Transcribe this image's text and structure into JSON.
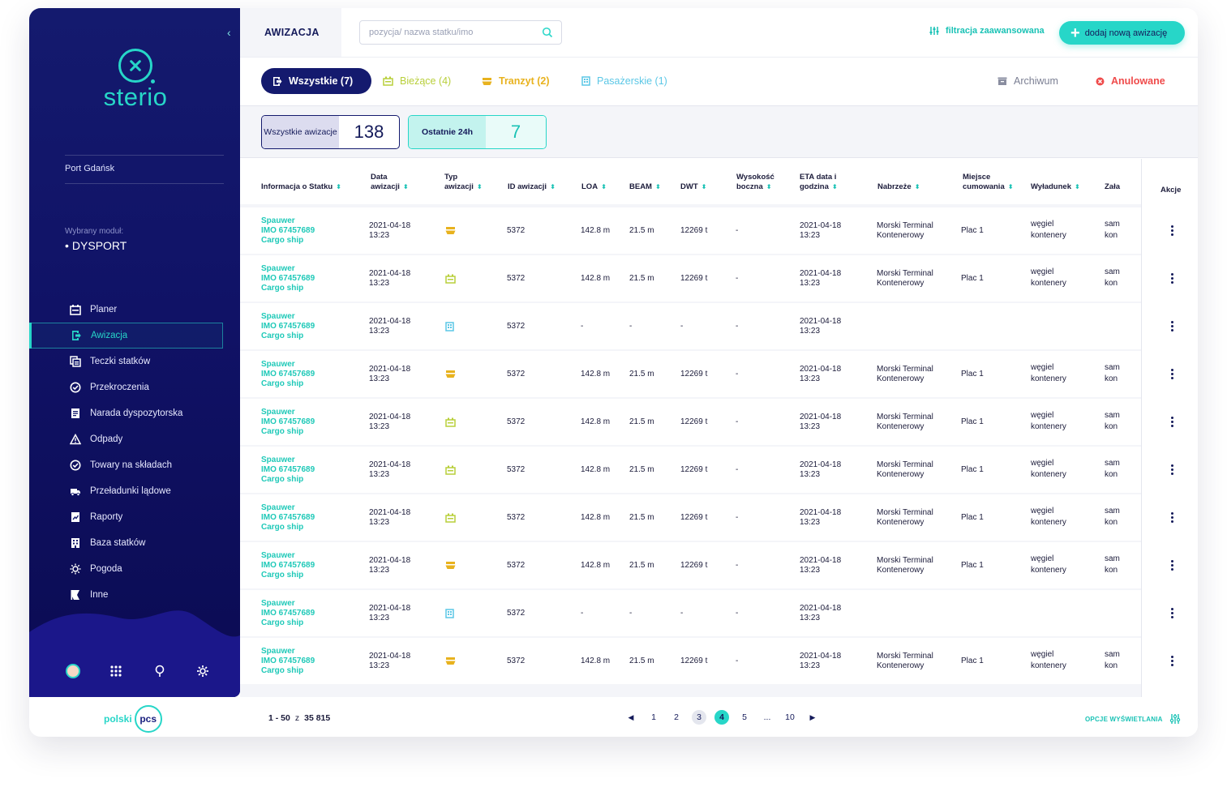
{
  "brand": {
    "name": "sterio",
    "footer_logo_left": "polski",
    "footer_logo_right": "pcs"
  },
  "sidebar": {
    "port": "Port Gdańsk",
    "module_caption": "Wybrany moduł:",
    "module_name": "DYSPORT",
    "items": [
      {
        "label": "Planer",
        "icon": "calendar-icon"
      },
      {
        "label": "Awizacja",
        "icon": "awizacja-icon",
        "active": true
      },
      {
        "label": "Teczki statków",
        "icon": "folders-icon"
      },
      {
        "label": "Przekroczenia",
        "icon": "check-circle-icon"
      },
      {
        "label": "Narada dyspozytorska",
        "icon": "document-icon"
      },
      {
        "label": "Odpady",
        "icon": "warning-icon"
      },
      {
        "label": "Towary na składach",
        "icon": "check-circle-icon"
      },
      {
        "label": "Przeładunki lądowe",
        "icon": "truck-icon"
      },
      {
        "label": "Raporty",
        "icon": "report-icon"
      },
      {
        "label": "Baza statków",
        "icon": "building-icon"
      },
      {
        "label": "Pogoda",
        "icon": "sun-icon"
      },
      {
        "label": "Inne",
        "icon": "flag-icon"
      }
    ]
  },
  "topbar": {
    "title": "AWIZACJA",
    "search_placeholder": "pozycja/ nazwa statku/imo",
    "filter_label": "filtracja zaawansowana",
    "add_label": "dodaj nową awizację"
  },
  "tabs": {
    "all": "Wszystkie (7)",
    "current": "Bieżące (4)",
    "tranzyt": "Tranzyt (2)",
    "passenger": "Pasażerskie (1)",
    "archive": "Archiwum",
    "cancelled": "Anulowane"
  },
  "stats": {
    "all_label": "Wszystkie awizacje",
    "all_value": "138",
    "last24_label": "Ostatnie 24h",
    "last24_value": "7"
  },
  "table": {
    "headers": {
      "ship": "Informacja o Statku",
      "date": "Data awizacji",
      "type": "Typ awizacji",
      "id": "ID awizacji",
      "loa": "LOA",
      "beam": "BEAM",
      "dwt": "DWT",
      "height": "Wysokość boczna",
      "eta": "ETA data i godzina",
      "quay": "Nabrzeże",
      "berth": "Miejsce cumowania",
      "unload": "Wyładunek",
      "load": "Zała",
      "actions": "Akcje"
    },
    "rows": [
      {
        "ship_name": "Spauwer",
        "ship_imo": "IMO 67457689",
        "ship_type": "Cargo ship",
        "date1": "2021-04-18",
        "date2": "13:23",
        "type_icon": "tranzyt",
        "id": "5372",
        "loa": "142.8 m",
        "beam": "21.5 m",
        "dwt": "12269 t",
        "height": "-",
        "eta1": "2021-04-18",
        "eta2": "13:23",
        "quay1": "Morski Terminal",
        "quay2": "Kontenerowy",
        "berth": "Plac 1",
        "unload1": "węgiel",
        "unload2": "kontenery",
        "load1": "sam",
        "load2": "kon"
      },
      {
        "ship_name": "Spauwer",
        "ship_imo": "IMO 67457689",
        "ship_type": "Cargo ship",
        "date1": "2021-04-18",
        "date2": "13:23",
        "type_icon": "current",
        "id": "5372",
        "loa": "142.8 m",
        "beam": "21.5 m",
        "dwt": "12269 t",
        "height": "-",
        "eta1": "2021-04-18",
        "eta2": "13:23",
        "quay1": "Morski Terminal",
        "quay2": "Kontenerowy",
        "berth": "Plac 1",
        "unload1": "węgiel",
        "unload2": "kontenery",
        "load1": "sam",
        "load2": "kon"
      },
      {
        "ship_name": "Spauwer",
        "ship_imo": "IMO 67457689",
        "ship_type": "Cargo ship",
        "date1": "2021-04-18",
        "date2": "13:23",
        "type_icon": "passenger",
        "id": "5372",
        "loa": "-",
        "beam": "-",
        "dwt": "-",
        "height": "-",
        "eta1": "2021-04-18",
        "eta2": "13:23",
        "quay1": "",
        "quay2": "",
        "berth": "",
        "unload1": "",
        "unload2": "",
        "load1": "",
        "load2": ""
      },
      {
        "ship_name": "Spauwer",
        "ship_imo": "IMO 67457689",
        "ship_type": "Cargo ship",
        "date1": "2021-04-18",
        "date2": "13:23",
        "type_icon": "tranzyt",
        "id": "5372",
        "loa": "142.8 m",
        "beam": "21.5 m",
        "dwt": "12269 t",
        "height": "-",
        "eta1": "2021-04-18",
        "eta2": "13:23",
        "quay1": "Morski Terminal",
        "quay2": "Kontenerowy",
        "berth": "Plac 1",
        "unload1": "węgiel",
        "unload2": "kontenery",
        "load1": "sam",
        "load2": "kon"
      },
      {
        "ship_name": "Spauwer",
        "ship_imo": "IMO 67457689",
        "ship_type": "Cargo ship",
        "date1": "2021-04-18",
        "date2": "13:23",
        "type_icon": "current",
        "id": "5372",
        "loa": "142.8 m",
        "beam": "21.5 m",
        "dwt": "12269 t",
        "height": "-",
        "eta1": "2021-04-18",
        "eta2": "13:23",
        "quay1": "Morski Terminal",
        "quay2": "Kontenerowy",
        "berth": "Plac 1",
        "unload1": "węgiel",
        "unload2": "kontenery",
        "load1": "sam",
        "load2": "kon"
      },
      {
        "ship_name": "Spauwer",
        "ship_imo": "IMO 67457689",
        "ship_type": "Cargo ship",
        "date1": "2021-04-18",
        "date2": "13:23",
        "type_icon": "current",
        "id": "5372",
        "loa": "142.8 m",
        "beam": "21.5 m",
        "dwt": "12269 t",
        "height": "-",
        "eta1": "2021-04-18",
        "eta2": "13:23",
        "quay1": "Morski Terminal",
        "quay2": "Kontenerowy",
        "berth": "Plac 1",
        "unload1": "węgiel",
        "unload2": "kontenery",
        "load1": "sam",
        "load2": "kon"
      },
      {
        "ship_name": "Spauwer",
        "ship_imo": "IMO 67457689",
        "ship_type": "Cargo ship",
        "date1": "2021-04-18",
        "date2": "13:23",
        "type_icon": "current",
        "id": "5372",
        "loa": "142.8 m",
        "beam": "21.5 m",
        "dwt": "12269 t",
        "height": "-",
        "eta1": "2021-04-18",
        "eta2": "13:23",
        "quay1": "Morski Terminal",
        "quay2": "Kontenerowy",
        "berth": "Plac 1",
        "unload1": "węgiel",
        "unload2": "kontenery",
        "load1": "sam",
        "load2": "kon"
      },
      {
        "ship_name": "Spauwer",
        "ship_imo": "IMO 67457689",
        "ship_type": "Cargo ship",
        "date1": "2021-04-18",
        "date2": "13:23",
        "type_icon": "tranzyt",
        "id": "5372",
        "loa": "142.8 m",
        "beam": "21.5 m",
        "dwt": "12269 t",
        "height": "-",
        "eta1": "2021-04-18",
        "eta2": "13:23",
        "quay1": "Morski Terminal",
        "quay2": "Kontenerowy",
        "berth": "Plac 1",
        "unload1": "węgiel",
        "unload2": "kontenery",
        "load1": "sam",
        "load2": "kon"
      },
      {
        "ship_name": "Spauwer",
        "ship_imo": "IMO 67457689",
        "ship_type": "Cargo ship",
        "date1": "2021-04-18",
        "date2": "13:23",
        "type_icon": "passenger",
        "id": "5372",
        "loa": "-",
        "beam": "-",
        "dwt": "-",
        "height": "-",
        "eta1": "2021-04-18",
        "eta2": "13:23",
        "quay1": "",
        "quay2": "",
        "berth": "",
        "unload1": "",
        "unload2": "",
        "load1": "",
        "load2": ""
      },
      {
        "ship_name": "Spauwer",
        "ship_imo": "IMO 67457689",
        "ship_type": "Cargo ship",
        "date1": "2021-04-18",
        "date2": "13:23",
        "type_icon": "tranzyt",
        "id": "5372",
        "loa": "142.8 m",
        "beam": "21.5 m",
        "dwt": "12269 t",
        "height": "-",
        "eta1": "2021-04-18",
        "eta2": "13:23",
        "quay1": "Morski Terminal",
        "quay2": "Kontenerowy",
        "berth": "Plac 1",
        "unload1": "węgiel",
        "unload2": "kontenery",
        "load1": "sam",
        "load2": "kon"
      }
    ]
  },
  "footer": {
    "range": "1 - 50",
    "range_sep": "z",
    "total": "35 815",
    "pages": [
      "1",
      "2",
      "3",
      "4",
      "5",
      "...",
      "10"
    ],
    "current_page": "4",
    "visited_page": "3",
    "display_options": "OPCJE WYŚWIETLANIA"
  },
  "colors": {
    "navy": "#141a6e",
    "teal": "#27d6c8",
    "current": "#b8cf3a",
    "tranzyt": "#e8b21e",
    "passenger": "#5bc7e6",
    "cancelled": "#ef4b4b"
  }
}
